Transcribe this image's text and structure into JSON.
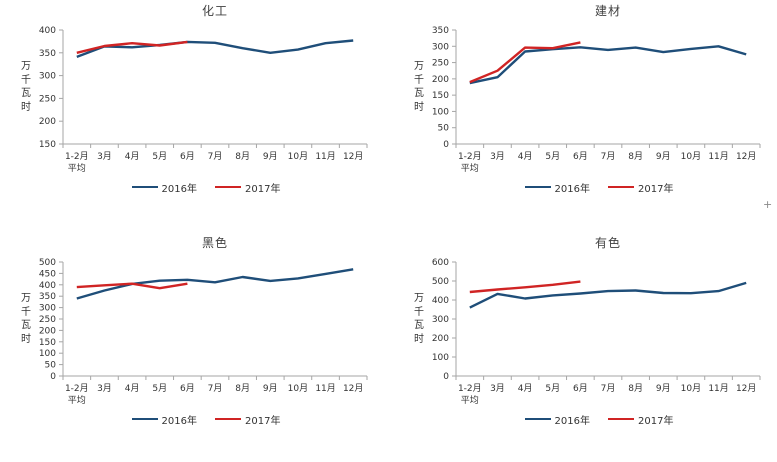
{
  "page": {
    "background": "#ffffff",
    "axis_color": "#a6a6a6",
    "text_color": "#333333"
  },
  "artifact": {
    "plus_glyph": "+"
  },
  "chart_data": [
    {
      "type": "line",
      "title": "化工",
      "ylabel": "万千瓦时",
      "categories": [
        "1-2月\n平均",
        "3月",
        "4月",
        "5月",
        "6月",
        "7月",
        "8月",
        "9月",
        "10月",
        "11月",
        "12月"
      ],
      "series": [
        {
          "name": "2016年",
          "color": "#1F4E79",
          "values": [
            341,
            364,
            362,
            367,
            374,
            372,
            360,
            350,
            357,
            371,
            377
          ]
        },
        {
          "name": "2017年",
          "color": "#D02424",
          "values": [
            350,
            365,
            371,
            366,
            374
          ]
        }
      ],
      "ylim": [
        150,
        400
      ],
      "yticks": [
        150,
        200,
        250,
        300,
        350,
        400
      ],
      "grid": false,
      "legend_position": "bottom"
    },
    {
      "type": "line",
      "title": "建材",
      "ylabel": "万千瓦时",
      "categories": [
        "1-2月\n平均",
        "3月",
        "4月",
        "5月",
        "6月",
        "7月",
        "8月",
        "9月",
        "10月",
        "11月",
        "12月"
      ],
      "series": [
        {
          "name": "2016年",
          "color": "#1F4E79",
          "values": [
            187,
            205,
            284,
            291,
            297,
            289,
            296,
            282,
            292,
            300,
            275
          ]
        },
        {
          "name": "2017年",
          "color": "#D02424",
          "values": [
            190,
            225,
            296,
            294,
            312
          ]
        }
      ],
      "ylim": [
        0,
        350
      ],
      "yticks": [
        0,
        50,
        100,
        150,
        200,
        250,
        300,
        350
      ],
      "grid": false,
      "legend_position": "bottom"
    },
    {
      "type": "line",
      "title": "黑色",
      "ylabel": "万千瓦时",
      "categories": [
        "1-2月\n平均",
        "3月",
        "4月",
        "5月",
        "6月",
        "7月",
        "8月",
        "9月",
        "10月",
        "11月",
        "12月"
      ],
      "series": [
        {
          "name": "2016年",
          "color": "#1F4E79",
          "values": [
            340,
            375,
            404,
            418,
            422,
            411,
            434,
            417,
            428,
            448,
            468
          ]
        },
        {
          "name": "2017年",
          "color": "#D02424",
          "values": [
            390,
            398,
            405,
            385,
            405
          ]
        }
      ],
      "ylim": [
        0,
        500
      ],
      "yticks": [
        0,
        50,
        100,
        150,
        200,
        250,
        300,
        350,
        400,
        450,
        500
      ],
      "grid": false,
      "legend_position": "bottom"
    },
    {
      "type": "line",
      "title": "有色",
      "ylabel": "万千瓦时",
      "categories": [
        "1-2月\n平均",
        "3月",
        "4月",
        "5月",
        "6月",
        "7月",
        "8月",
        "9月",
        "10月",
        "11月",
        "12月"
      ],
      "series": [
        {
          "name": "2016年",
          "color": "#1F4E79",
          "values": [
            360,
            432,
            408,
            424,
            434,
            447,
            450,
            437,
            436,
            447,
            490
          ]
        },
        {
          "name": "2017年",
          "color": "#D02424",
          "values": [
            442,
            455,
            467,
            480,
            497
          ]
        }
      ],
      "ylim": [
        0,
        600
      ],
      "yticks": [
        0,
        100,
        200,
        300,
        400,
        500,
        600
      ],
      "grid": false,
      "legend_position": "bottom"
    }
  ]
}
